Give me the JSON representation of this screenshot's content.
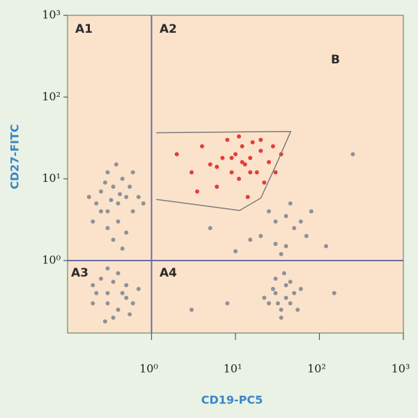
{
  "chart_data": {
    "type": "scatter",
    "x_label": "CD19-PC5",
    "y_label": "CD27-FITC",
    "log_x": true,
    "log_y": true,
    "xlim": [
      0.1,
      1000
    ],
    "ylim": [
      0.13,
      1000
    ],
    "xticks": [
      {
        "value": 1,
        "label": "10⁰"
      },
      {
        "value": 10,
        "label": "10¹"
      },
      {
        "value": 100,
        "label": "10²"
      },
      {
        "value": 1000,
        "label": "10³"
      }
    ],
    "yticks": [
      {
        "value": 1,
        "label": "10⁰"
      },
      {
        "value": 10,
        "label": "10¹"
      },
      {
        "value": 100,
        "label": "10²"
      },
      {
        "value": 1000,
        "label": "10³"
      }
    ],
    "quadrant": {
      "x": 1,
      "y": 1,
      "color": "#6b6ba3"
    },
    "quadrant_labels": [
      "A1",
      "A2",
      "A3",
      "A4"
    ],
    "gate": {
      "label": "B",
      "color": "#7a7a7a",
      "x": [
        1.14,
        45.5,
        31,
        20,
        11.2,
        1.14
      ],
      "y": [
        36.6,
        38,
        15.4,
        5.8,
        4.1,
        5.6
      ]
    },
    "series": [
      {
        "color": "#7a8290",
        "x": [
          0.2,
          0.3,
          0.4,
          0.5,
          0.25,
          0.35,
          0.45,
          0.6,
          0.3,
          0.4,
          0.22,
          0.55,
          0.3,
          0.7,
          0.18,
          0.35,
          0.5,
          0.28,
          0.42,
          0.33,
          0.6,
          0.25,
          0.8,
          0.38,
          0.45,
          0.2,
          0.3,
          0.4,
          0.5,
          0.25,
          0.35,
          0.6,
          0.3,
          0.45,
          0.2,
          0.4,
          0.55,
          0.28,
          0.7,
          0.35,
          0.5,
          0.22,
          0.3,
          25,
          30,
          35,
          40,
          45,
          30,
          50,
          35,
          28,
          40,
          55,
          22,
          38,
          45,
          32,
          60,
          20,
          30,
          40,
          50,
          25,
          35,
          60,
          15,
          45,
          70,
          30,
          10,
          80,
          40,
          5,
          120,
          150,
          8,
          3,
          250
        ],
        "values": [
          3,
          4,
          5,
          6,
          7,
          8,
          10,
          4,
          2.5,
          3,
          5,
          8,
          12,
          6,
          6,
          1.8,
          2.2,
          9,
          6.5,
          5.5,
          12,
          4,
          5,
          15,
          1.4,
          0.3,
          0.4,
          0.25,
          0.5,
          0.6,
          0.2,
          0.3,
          0.3,
          0.4,
          0.5,
          0.7,
          0.22,
          0.18,
          0.45,
          0.55,
          0.35,
          0.4,
          0.8,
          0.3,
          0.4,
          0.25,
          0.5,
          0.3,
          0.6,
          0.4,
          0.2,
          0.45,
          0.35,
          0.25,
          0.35,
          0.7,
          0.55,
          0.3,
          0.45,
          2,
          3,
          1.5,
          2.5,
          4,
          1.2,
          3,
          1.8,
          5,
          2,
          1.6,
          1.3,
          4,
          3.5,
          2.5,
          1.5,
          0.4,
          0.3,
          0.25,
          20
        ]
      },
      {
        "color": "#e0201e",
        "x": [
          2,
          3,
          4,
          5,
          6,
          7,
          8,
          9,
          10,
          11,
          12,
          13,
          14,
          15,
          16,
          18,
          20,
          22,
          25,
          28,
          30,
          35,
          12,
          9,
          15,
          6,
          20,
          3.5,
          11
        ],
        "values": [
          20,
          12,
          25,
          15,
          8,
          18,
          30,
          12,
          20,
          10,
          25,
          15,
          6,
          18,
          28,
          12,
          22,
          9,
          16,
          25,
          12,
          20,
          16,
          18,
          12,
          14,
          30,
          7,
          33
        ]
      }
    ]
  }
}
